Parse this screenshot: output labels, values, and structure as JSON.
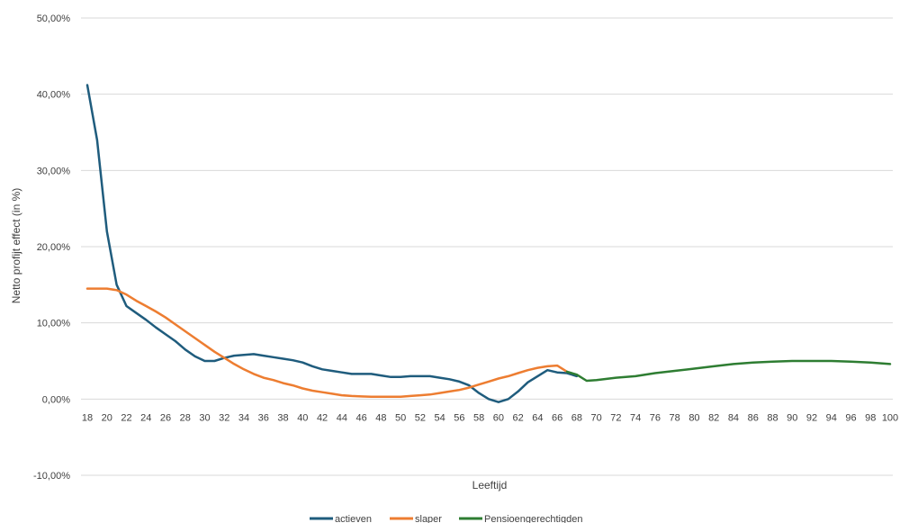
{
  "chart_data": {
    "type": "line",
    "xlabel": "Leeftijd",
    "ylabel": "Netto profijt effect (in %)",
    "ylim": [
      -10,
      50
    ],
    "yticks": [
      -10,
      0,
      10,
      20,
      30,
      40,
      50
    ],
    "ytick_labels": [
      "-10,00%",
      "0,00%",
      "10,00%",
      "20,00%",
      "30,00%",
      "40,00%",
      "50,00%"
    ],
    "xlim": [
      18,
      100
    ],
    "xticks": [
      18,
      20,
      22,
      24,
      26,
      28,
      30,
      32,
      34,
      36,
      38,
      40,
      42,
      44,
      46,
      48,
      50,
      52,
      54,
      56,
      58,
      60,
      62,
      64,
      66,
      68,
      70,
      72,
      74,
      76,
      78,
      80,
      82,
      84,
      86,
      88,
      90,
      92,
      94,
      96,
      98,
      100
    ],
    "grid": true,
    "legend": "bottom",
    "series": [
      {
        "name": "actieven",
        "color": "#1f5c7d",
        "x": [
          18,
          19,
          20,
          21,
          22,
          23,
          24,
          25,
          26,
          27,
          28,
          29,
          30,
          31,
          32,
          33,
          34,
          35,
          36,
          37,
          38,
          39,
          40,
          41,
          42,
          43,
          44,
          45,
          46,
          47,
          48,
          49,
          50,
          51,
          52,
          53,
          54,
          55,
          56,
          57,
          58,
          59,
          60,
          61,
          62,
          63,
          64,
          65,
          66,
          67,
          68
        ],
        "y": [
          41.2,
          34.0,
          22.0,
          15.0,
          12.2,
          11.3,
          10.4,
          9.4,
          8.5,
          7.6,
          6.5,
          5.6,
          5.0,
          5.0,
          5.4,
          5.7,
          5.8,
          5.9,
          5.7,
          5.5,
          5.3,
          5.1,
          4.8,
          4.3,
          3.9,
          3.7,
          3.5,
          3.3,
          3.3,
          3.3,
          3.1,
          2.9,
          2.9,
          3.0,
          3.0,
          3.0,
          2.8,
          2.6,
          2.3,
          1.8,
          0.8,
          0.0,
          -0.4,
          0.0,
          1.0,
          2.2,
          3.0,
          3.8,
          3.5,
          3.4,
          3.0
        ]
      },
      {
        "name": "slaper",
        "color": "#ed7d31",
        "x": [
          18,
          19,
          20,
          21,
          22,
          23,
          24,
          25,
          26,
          27,
          28,
          29,
          30,
          31,
          32,
          33,
          34,
          35,
          36,
          37,
          38,
          39,
          40,
          41,
          42,
          43,
          44,
          45,
          46,
          47,
          48,
          49,
          50,
          51,
          52,
          53,
          54,
          55,
          56,
          57,
          58,
          59,
          60,
          61,
          62,
          63,
          64,
          65,
          66,
          67
        ],
        "y": [
          14.5,
          14.5,
          14.5,
          14.3,
          13.7,
          12.9,
          12.2,
          11.5,
          10.7,
          9.8,
          8.9,
          8.0,
          7.1,
          6.2,
          5.4,
          4.6,
          3.9,
          3.3,
          2.8,
          2.5,
          2.1,
          1.8,
          1.4,
          1.1,
          0.9,
          0.7,
          0.5,
          0.4,
          0.35,
          0.3,
          0.3,
          0.3,
          0.3,
          0.4,
          0.5,
          0.6,
          0.8,
          1.0,
          1.2,
          1.5,
          1.9,
          2.3,
          2.7,
          3.0,
          3.4,
          3.8,
          4.1,
          4.3,
          4.4,
          3.6
        ]
      },
      {
        "name": "Pensioengerechtigden",
        "color": "#2e7d32",
        "x": [
          67,
          68,
          69,
          70,
          72,
          74,
          76,
          78,
          80,
          82,
          84,
          86,
          88,
          90,
          92,
          94,
          96,
          98,
          100
        ],
        "y": [
          3.6,
          3.2,
          2.4,
          2.5,
          2.8,
          3.0,
          3.4,
          3.7,
          4.0,
          4.3,
          4.6,
          4.8,
          4.9,
          5.0,
          5.0,
          5.0,
          4.9,
          4.8,
          4.6
        ]
      }
    ]
  }
}
